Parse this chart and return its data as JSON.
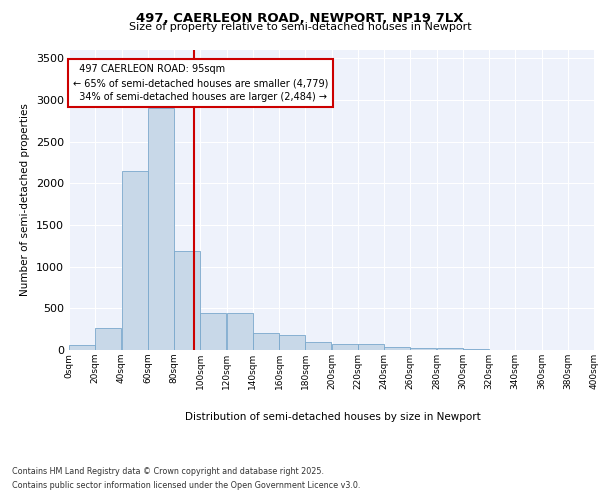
{
  "title_line1": "497, CAERLEON ROAD, NEWPORT, NP19 7LX",
  "title_line2": "Size of property relative to semi-detached houses in Newport",
  "xlabel": "Distribution of semi-detached houses by size in Newport",
  "ylabel": "Number of semi-detached properties",
  "bin_edges": [
    0,
    20,
    40,
    60,
    80,
    100,
    120,
    140,
    160,
    180,
    200,
    220,
    240,
    260,
    280,
    300,
    320,
    340,
    360,
    380,
    400
  ],
  "bar_values": [
    60,
    270,
    2150,
    2900,
    1190,
    450,
    450,
    200,
    180,
    100,
    75,
    70,
    40,
    25,
    20,
    10,
    5,
    5,
    2,
    1
  ],
  "bar_color": "#c8d8e8",
  "bar_edgecolor": "#7aa8cc",
  "property_size": 95,
  "property_label": "497 CAERLEON ROAD: 95sqm",
  "pct_smaller": 65,
  "n_smaller": 4779,
  "pct_larger": 34,
  "n_larger": 2484,
  "vline_color": "#cc0000",
  "annotation_box_edgecolor": "#cc0000",
  "ylim": [
    0,
    3600
  ],
  "yticks": [
    0,
    500,
    1000,
    1500,
    2000,
    2500,
    3000,
    3500
  ],
  "background_color": "#eef2fb",
  "grid_color": "#ffffff",
  "fig_background": "#ffffff",
  "footer_line1": "Contains HM Land Registry data © Crown copyright and database right 2025.",
  "footer_line2": "Contains public sector information licensed under the Open Government Licence v3.0."
}
